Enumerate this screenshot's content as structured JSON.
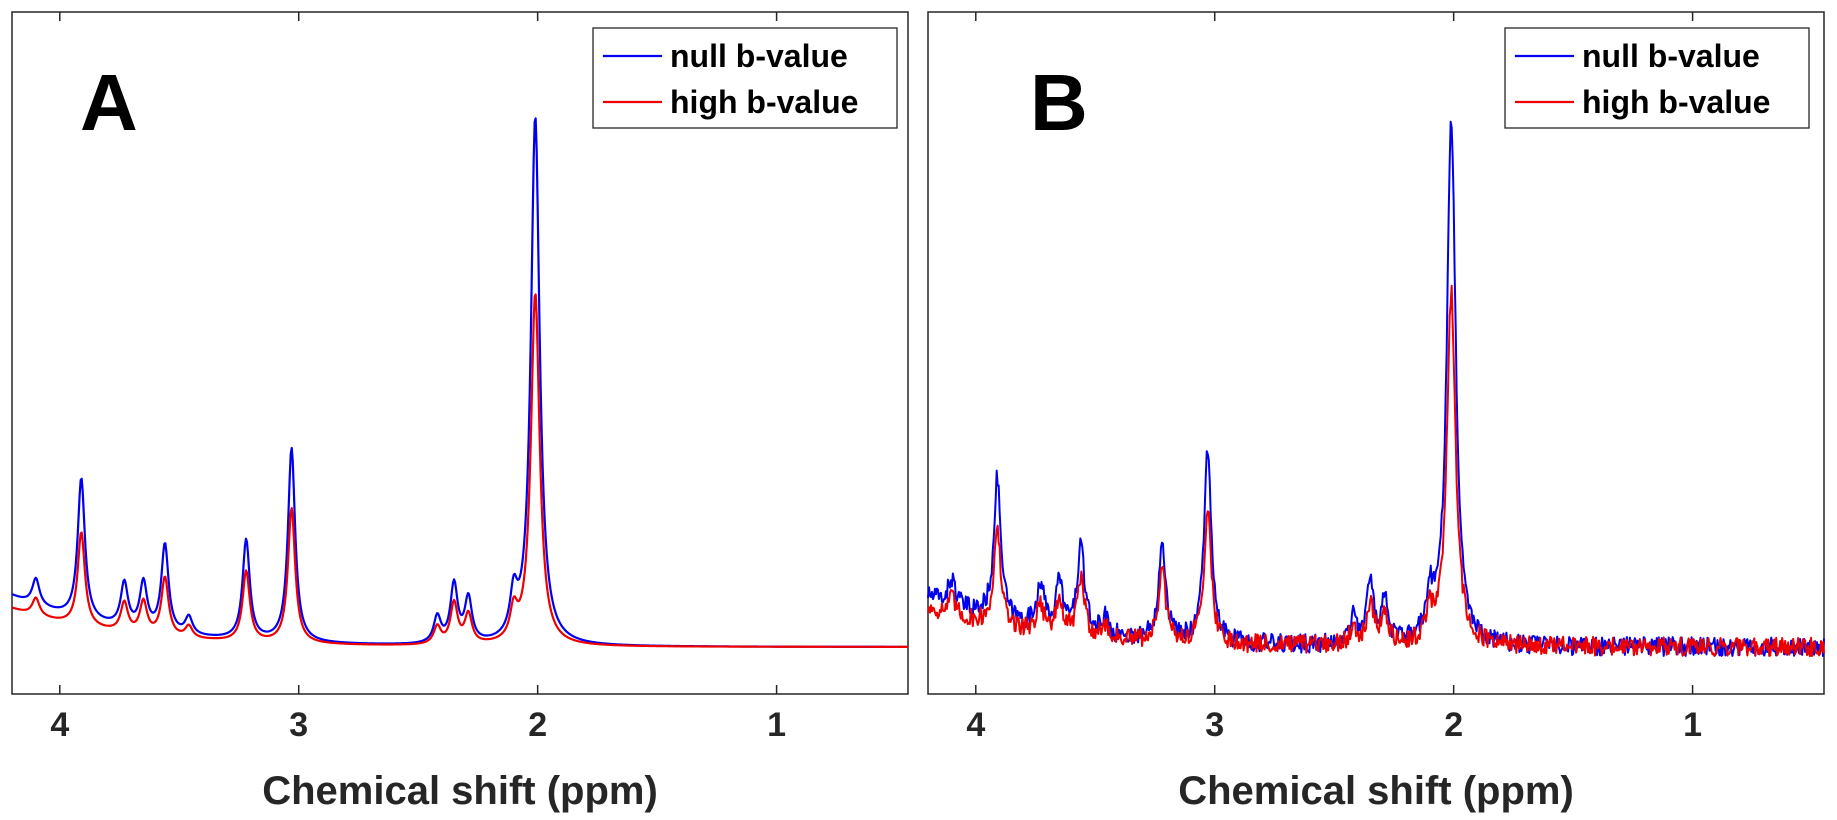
{
  "chart_data": [
    {
      "type": "line",
      "panel": "A",
      "xlabel": "Chemical shift (ppm)",
      "ylabel": "",
      "xlim": [
        4.2,
        0.45
      ],
      "x_reversed": true,
      "ylim": [
        -0.08,
        1.08
      ],
      "xticks": [
        4,
        3,
        2,
        1
      ],
      "xtick_labels": [
        "4",
        "3",
        "2",
        "1"
      ],
      "grid": false,
      "legend_position": "top-right",
      "noise": 0,
      "series": [
        {
          "name": "null b-value",
          "color": "#0000ee",
          "peaks": [
            {
              "ppm": 4.1,
              "amp": 0.045
            },
            {
              "ppm": 3.91,
              "amp": 0.24
            },
            {
              "ppm": 3.73,
              "amp": 0.075
            },
            {
              "ppm": 3.65,
              "amp": 0.08
            },
            {
              "ppm": 3.56,
              "amp": 0.15
            },
            {
              "ppm": 3.46,
              "amp": 0.03
            },
            {
              "ppm": 3.22,
              "amp": 0.17
            },
            {
              "ppm": 3.03,
              "amp": 0.33
            },
            {
              "ppm": 2.42,
              "amp": 0.045
            },
            {
              "ppm": 2.35,
              "amp": 0.1
            },
            {
              "ppm": 2.29,
              "amp": 0.075
            },
            {
              "ppm": 2.1,
              "amp": 0.07
            },
            {
              "ppm": 2.01,
              "amp": 0.9
            }
          ]
        },
        {
          "name": "high b-value",
          "color": "#ee0000",
          "peaks": [
            {
              "ppm": 4.1,
              "amp": 0.03
            },
            {
              "ppm": 3.91,
              "amp": 0.16
            },
            {
              "ppm": 3.73,
              "amp": 0.05
            },
            {
              "ppm": 3.65,
              "amp": 0.055
            },
            {
              "ppm": 3.56,
              "amp": 0.1
            },
            {
              "ppm": 3.46,
              "amp": 0.02
            },
            {
              "ppm": 3.22,
              "amp": 0.12
            },
            {
              "ppm": 3.03,
              "amp": 0.23
            },
            {
              "ppm": 2.42,
              "amp": 0.03
            },
            {
              "ppm": 2.35,
              "amp": 0.07
            },
            {
              "ppm": 2.29,
              "amp": 0.05
            },
            {
              "ppm": 2.1,
              "amp": 0.05
            },
            {
              "ppm": 2.01,
              "amp": 0.6
            }
          ]
        }
      ]
    },
    {
      "type": "line",
      "panel": "B",
      "xlabel": "Chemical shift (ppm)",
      "ylabel": "",
      "xlim": [
        4.2,
        0.45
      ],
      "x_reversed": true,
      "ylim": [
        -0.08,
        1.08
      ],
      "xticks": [
        4,
        3,
        2,
        1
      ],
      "xtick_labels": [
        "4",
        "3",
        "2",
        "1"
      ],
      "grid": false,
      "legend_position": "top-right",
      "noise": 0.01,
      "series": [
        {
          "name": "null b-value",
          "color": "#0000ee",
          "peaks": [
            {
              "ppm": 4.1,
              "amp": 0.045
            },
            {
              "ppm": 3.91,
              "amp": 0.24
            },
            {
              "ppm": 3.73,
              "amp": 0.075
            },
            {
              "ppm": 3.65,
              "amp": 0.08
            },
            {
              "ppm": 3.56,
              "amp": 0.15
            },
            {
              "ppm": 3.46,
              "amp": 0.03
            },
            {
              "ppm": 3.22,
              "amp": 0.17
            },
            {
              "ppm": 3.03,
              "amp": 0.33
            },
            {
              "ppm": 2.42,
              "amp": 0.045
            },
            {
              "ppm": 2.35,
              "amp": 0.1
            },
            {
              "ppm": 2.29,
              "amp": 0.075
            },
            {
              "ppm": 2.1,
              "amp": 0.07
            },
            {
              "ppm": 2.01,
              "amp": 0.9
            }
          ]
        },
        {
          "name": "high b-value",
          "color": "#ee0000",
          "peaks": [
            {
              "ppm": 4.1,
              "amp": 0.03
            },
            {
              "ppm": 3.91,
              "amp": 0.16
            },
            {
              "ppm": 3.73,
              "amp": 0.05
            },
            {
              "ppm": 3.65,
              "amp": 0.055
            },
            {
              "ppm": 3.56,
              "amp": 0.1
            },
            {
              "ppm": 3.46,
              "amp": 0.02
            },
            {
              "ppm": 3.22,
              "amp": 0.12
            },
            {
              "ppm": 3.03,
              "amp": 0.23
            },
            {
              "ppm": 2.42,
              "amp": 0.03
            },
            {
              "ppm": 2.35,
              "amp": 0.07
            },
            {
              "ppm": 2.29,
              "amp": 0.05
            },
            {
              "ppm": 2.1,
              "amp": 0.05
            },
            {
              "ppm": 2.01,
              "amp": 0.6
            }
          ]
        }
      ]
    }
  ]
}
